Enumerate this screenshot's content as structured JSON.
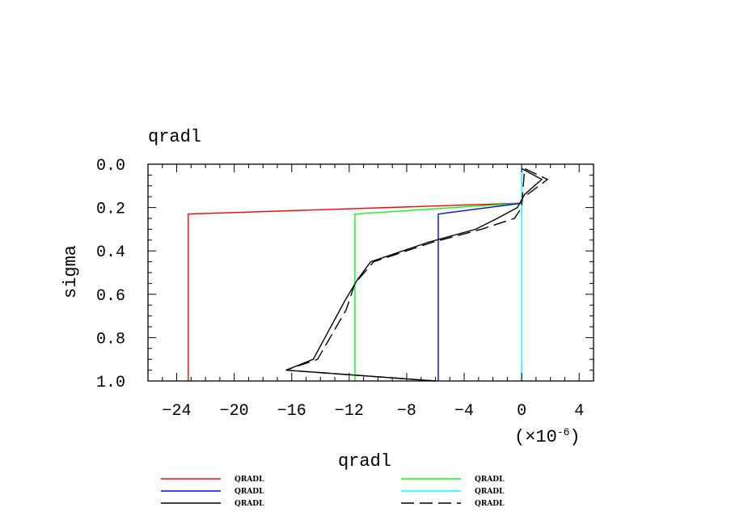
{
  "chart_data": {
    "type": "line",
    "title": "qradl",
    "xlabel": "qradl",
    "ylabel": "sigma",
    "x_multiplier_label": "(×10",
    "x_multiplier_exp": "-6",
    "x_multiplier_close": ")",
    "xlim": [
      -26,
      5
    ],
    "ylim": [
      0.0,
      1.0
    ],
    "y_reversed": true,
    "x_ticks": [
      -24,
      -20,
      -16,
      -12,
      -8,
      -4,
      0,
      4
    ],
    "x_tick_labels": [
      "−24",
      "−20",
      "−16",
      "−12",
      "−8",
      "−4",
      "0",
      "4"
    ],
    "y_ticks": [
      0.0,
      0.2,
      0.4,
      0.6,
      0.8,
      1.0
    ],
    "y_tick_labels": [
      "0.0",
      "0.2",
      "0.4",
      "0.6",
      "0.8",
      "1.0"
    ],
    "grid": false,
    "legend_position": "bottom",
    "series": [
      {
        "name": "QRADL",
        "color": "#ff0000",
        "dash": "solid",
        "points": [
          [
            0,
            0.18
          ],
          [
            -23.2,
            0.23
          ],
          [
            -23.2,
            1.0
          ]
        ]
      },
      {
        "name": "QRADL",
        "color": "#00ff00",
        "dash": "solid",
        "points": [
          [
            0,
            0.18
          ],
          [
            -11.6,
            0.23
          ],
          [
            -11.6,
            1.0
          ]
        ]
      },
      {
        "name": "QRADL",
        "color": "#0000ff",
        "dash": "solid",
        "points": [
          [
            0,
            0.18
          ],
          [
            -5.8,
            0.23
          ],
          [
            -5.8,
            1.0
          ]
        ]
      },
      {
        "name": "QRADL",
        "color": "#00ffff",
        "dash": "solid",
        "points": [
          [
            0,
            0.02
          ],
          [
            0,
            1.0
          ]
        ]
      },
      {
        "name": "QRADL",
        "color": "#000000",
        "dash": "solid",
        "points": [
          [
            0,
            0.02
          ],
          [
            1.4,
            0.07
          ],
          [
            0.2,
            0.14
          ],
          [
            -0.3,
            0.2
          ],
          [
            -1.7,
            0.25
          ],
          [
            -3.2,
            0.3
          ],
          [
            -6.5,
            0.36
          ],
          [
            -10.5,
            0.45
          ],
          [
            -11.4,
            0.53
          ],
          [
            -12.3,
            0.63
          ],
          [
            -14.5,
            0.9
          ],
          [
            -16.4,
            0.95
          ],
          [
            -6,
            1.0
          ]
        ]
      },
      {
        "name": "QRADL",
        "color": "#000000",
        "dash": "dashed",
        "points": [
          [
            0.4,
            0.14
          ],
          [
            1.8,
            0.07
          ],
          [
            0.2,
            0.02
          ],
          [
            0,
            0.2
          ],
          [
            -0.5,
            0.25
          ],
          [
            -2.8,
            0.3
          ],
          [
            -6.2,
            0.36
          ],
          [
            -10.3,
            0.45
          ],
          [
            -11.6,
            0.55
          ],
          [
            -12.2,
            0.67
          ],
          [
            -14.2,
            0.9
          ],
          [
            -16.4,
            0.95
          ],
          [
            -6,
            1.0
          ]
        ]
      }
    ]
  }
}
